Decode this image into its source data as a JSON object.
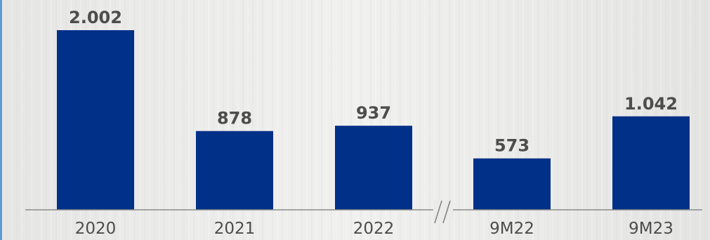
{
  "chart_data": {
    "type": "bar",
    "categories": [
      "2020",
      "2021",
      "2022",
      "9M22",
      "9M23"
    ],
    "values": [
      2002,
      878,
      937,
      573,
      1042
    ],
    "value_labels": [
      "2.002",
      "878",
      "937",
      "573",
      "1.042"
    ],
    "axis_break_marker": "//",
    "title": "",
    "xlabel": "",
    "ylabel": "",
    "ylim": [
      0,
      2002
    ],
    "grid": false,
    "bar_color": "#003087",
    "label_color": "#4d4d4d",
    "axis_color": "#8c8c8c"
  }
}
